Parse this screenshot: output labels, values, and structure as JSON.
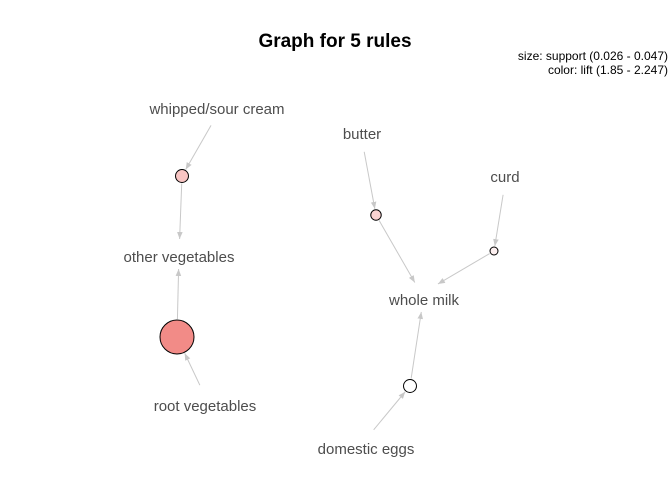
{
  "title": "Graph for 5 rules",
  "legend": {
    "size": "size: support (0.026 - 0.047)",
    "color": "color: lift (1.85 - 2.247)"
  },
  "items": [
    {
      "id": "whipped-sour-cream",
      "label": "whipped/sour cream"
    },
    {
      "id": "other-vegetables",
      "label": "other vegetables"
    },
    {
      "id": "root-vegetables",
      "label": "root vegetables"
    },
    {
      "id": "butter",
      "label": "butter"
    },
    {
      "id": "curd",
      "label": "curd"
    },
    {
      "id": "whole-milk",
      "label": "whole milk"
    },
    {
      "id": "domestic-eggs",
      "label": "domestic eggs"
    }
  ],
  "colors": {
    "low_lift": "#ffffff",
    "high_lift": "#f28b87",
    "edge": "#c8c8c8",
    "node_border": "#000000",
    "item_label": "#4d4d4d"
  },
  "chart_data": {
    "type": "graph",
    "title": "Graph for 5 rules",
    "size_measure": "support",
    "size_range": [
      0.026,
      0.047
    ],
    "color_measure": "lift",
    "color_range": [
      1.85,
      2.247
    ],
    "rules": [
      {
        "id": "rule-1",
        "lhs": [
          "whipped/sour cream"
        ],
        "rhs": [
          "other vegetables"
        ],
        "support": 0.03,
        "lift": 2.05
      },
      {
        "id": "rule-2",
        "lhs": [
          "root vegetables"
        ],
        "rhs": [
          "other vegetables"
        ],
        "support": 0.047,
        "lift": 2.247
      },
      {
        "id": "rule-3",
        "lhs": [
          "butter"
        ],
        "rhs": [
          "whole milk"
        ],
        "support": 0.028,
        "lift": 2.0
      },
      {
        "id": "rule-4",
        "lhs": [
          "curd"
        ],
        "rhs": [
          "whole milk"
        ],
        "support": 0.026,
        "lift": 1.9
      },
      {
        "id": "rule-5",
        "lhs": [
          "domestic eggs"
        ],
        "rhs": [
          "whole milk"
        ],
        "support": 0.03,
        "lift": 1.85
      }
    ]
  }
}
